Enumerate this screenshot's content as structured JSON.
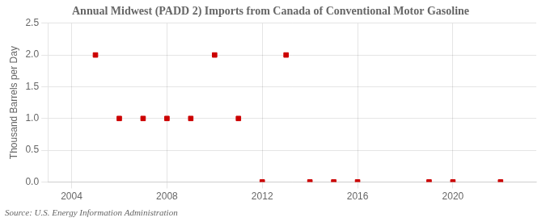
{
  "chart_data": {
    "type": "scatter",
    "title": "Annual Midwest (PADD 2) Imports from Canada of Conventional Motor Gasoline",
    "ylabel": "Thousand Barrels per Day",
    "source": "Source: U.S. Energy Information Administration",
    "x": [
      2005,
      2006,
      2007,
      2008,
      2009,
      2010,
      2011,
      2012,
      2013,
      2014,
      2015,
      2016,
      2019,
      2020,
      2022
    ],
    "values": [
      2.0,
      1.0,
      1.0,
      1.0,
      1.0,
      2.0,
      1.0,
      0.0,
      2.0,
      0.0,
      0.0,
      0.0,
      0.0,
      0.0,
      0.0
    ],
    "color": "#cc0000",
    "marker": "square",
    "xlim": [
      2003.0,
      2023.5
    ],
    "xticks": [
      2004,
      2008,
      2012,
      2016,
      2020
    ],
    "ylim": [
      0.0,
      2.5
    ],
    "yticks": [
      {
        "value": 0.0,
        "label": "0.0"
      },
      0.5,
      {
        "value": 1.0,
        "label": "1.0"
      },
      1.5,
      {
        "value": 2.0,
        "label": "2.0"
      },
      2.5
    ],
    "grid": true
  }
}
